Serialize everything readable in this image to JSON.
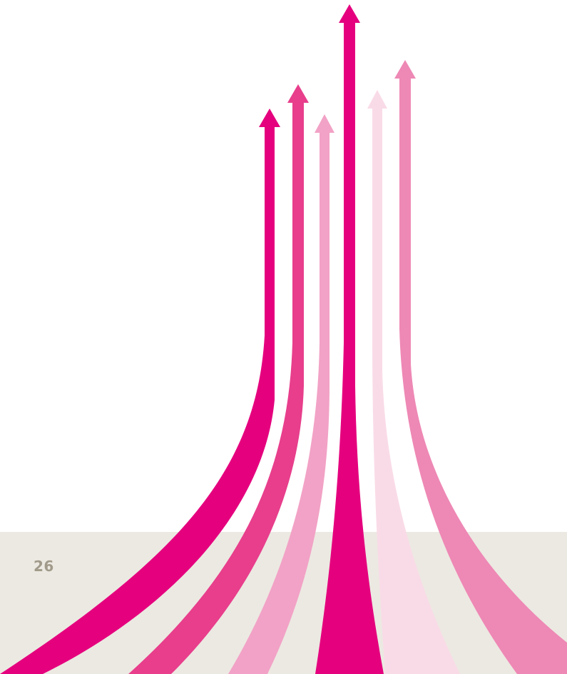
{
  "page": {
    "number": "26"
  },
  "colors": {
    "background": "#ffffff",
    "footer_band": "#ece9e2",
    "page_number": "#a19a8a",
    "magenta": "#e5007e",
    "pink_mid": "#e83e8c",
    "pink_light": "#f2a2c6",
    "pink_pale": "#f9dbe7",
    "pink_soft": "#ee88b5"
  },
  "illustration": {
    "name": "rising-arrows-graphic",
    "arrows": [
      {
        "id": "arrow-1",
        "color": "magenta"
      },
      {
        "id": "arrow-2",
        "color": "pink_mid"
      },
      {
        "id": "arrow-3",
        "color": "pink_light"
      },
      {
        "id": "arrow-4",
        "color": "magenta"
      },
      {
        "id": "arrow-5",
        "color": "pink_pale"
      },
      {
        "id": "arrow-6",
        "color": "pink_soft"
      }
    ]
  }
}
